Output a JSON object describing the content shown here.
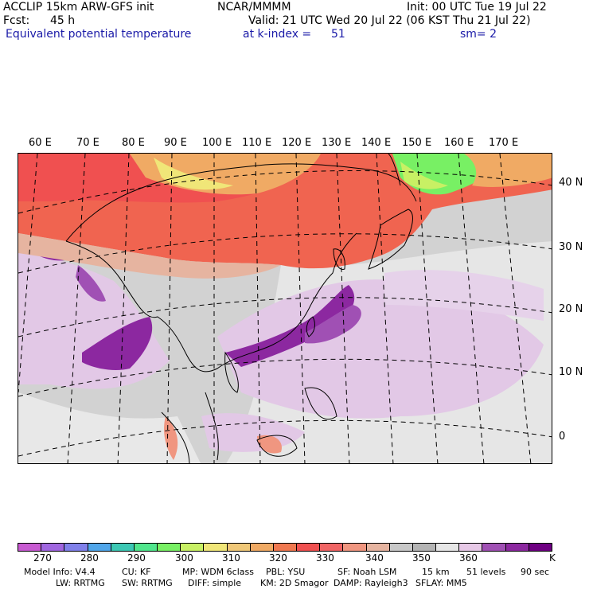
{
  "header": {
    "model": "ACCLIP 15km ARW-GFS init",
    "center": "NCAR/MMMM",
    "init": "Init: 00 UTC Tue 19 Jul 22",
    "fcst_label": "Fcst:",
    "fcst_value": "45 h",
    "valid": "Valid: 21 UTC Wed 20 Jul 22 (06 KST Thu 21 Jul 22)",
    "field": "Equivalent potential temperature",
    "level": "at k-index =",
    "level_value": "51",
    "smoothing": "sm= 2"
  },
  "map": {
    "lon_labels": [
      "60 E",
      "70 E",
      "80 E",
      "90 E",
      "100 E",
      "110 E",
      "120 E",
      "130 E",
      "140 E",
      "150 E",
      "160 E",
      "170 E"
    ],
    "lat_labels": [
      "40 N",
      "30 N",
      "20 N",
      "10 N",
      "0"
    ]
  },
  "colorbar": {
    "colors": [
      "#c85ad2",
      "#a066e0",
      "#8080ea",
      "#50a6ea",
      "#3cc8b4",
      "#50e68c",
      "#78f064",
      "#c8f064",
      "#f0e678",
      "#f0c878",
      "#f0aa64",
      "#f07850",
      "#f05050",
      "#f06464",
      "#f09680",
      "#e6b4a0",
      "#c8c8c8",
      "#b4b4b4",
      "#e6e6e6",
      "#e6c8e6",
      "#a050b4",
      "#8c28a0",
      "#6e0082"
    ],
    "ticks": [
      "270",
      "280",
      "290",
      "300",
      "310",
      "320",
      "330",
      "340",
      "350",
      "360"
    ],
    "unit": "K"
  },
  "footer": {
    "line1": [
      "Model Info: V4.4",
      "CU: KF",
      "MP: WDM 6class",
      "PBL: YSU",
      "SF: Noah LSM",
      "15 km",
      "51 levels",
      "90 sec"
    ],
    "line2": [
      "LW: RRTMG",
      "SW: RRTMG",
      "DIFF: simple",
      "KM: 2D Smagor",
      "DAMP: Rayleigh3",
      "SFLAY: MM5"
    ]
  }
}
